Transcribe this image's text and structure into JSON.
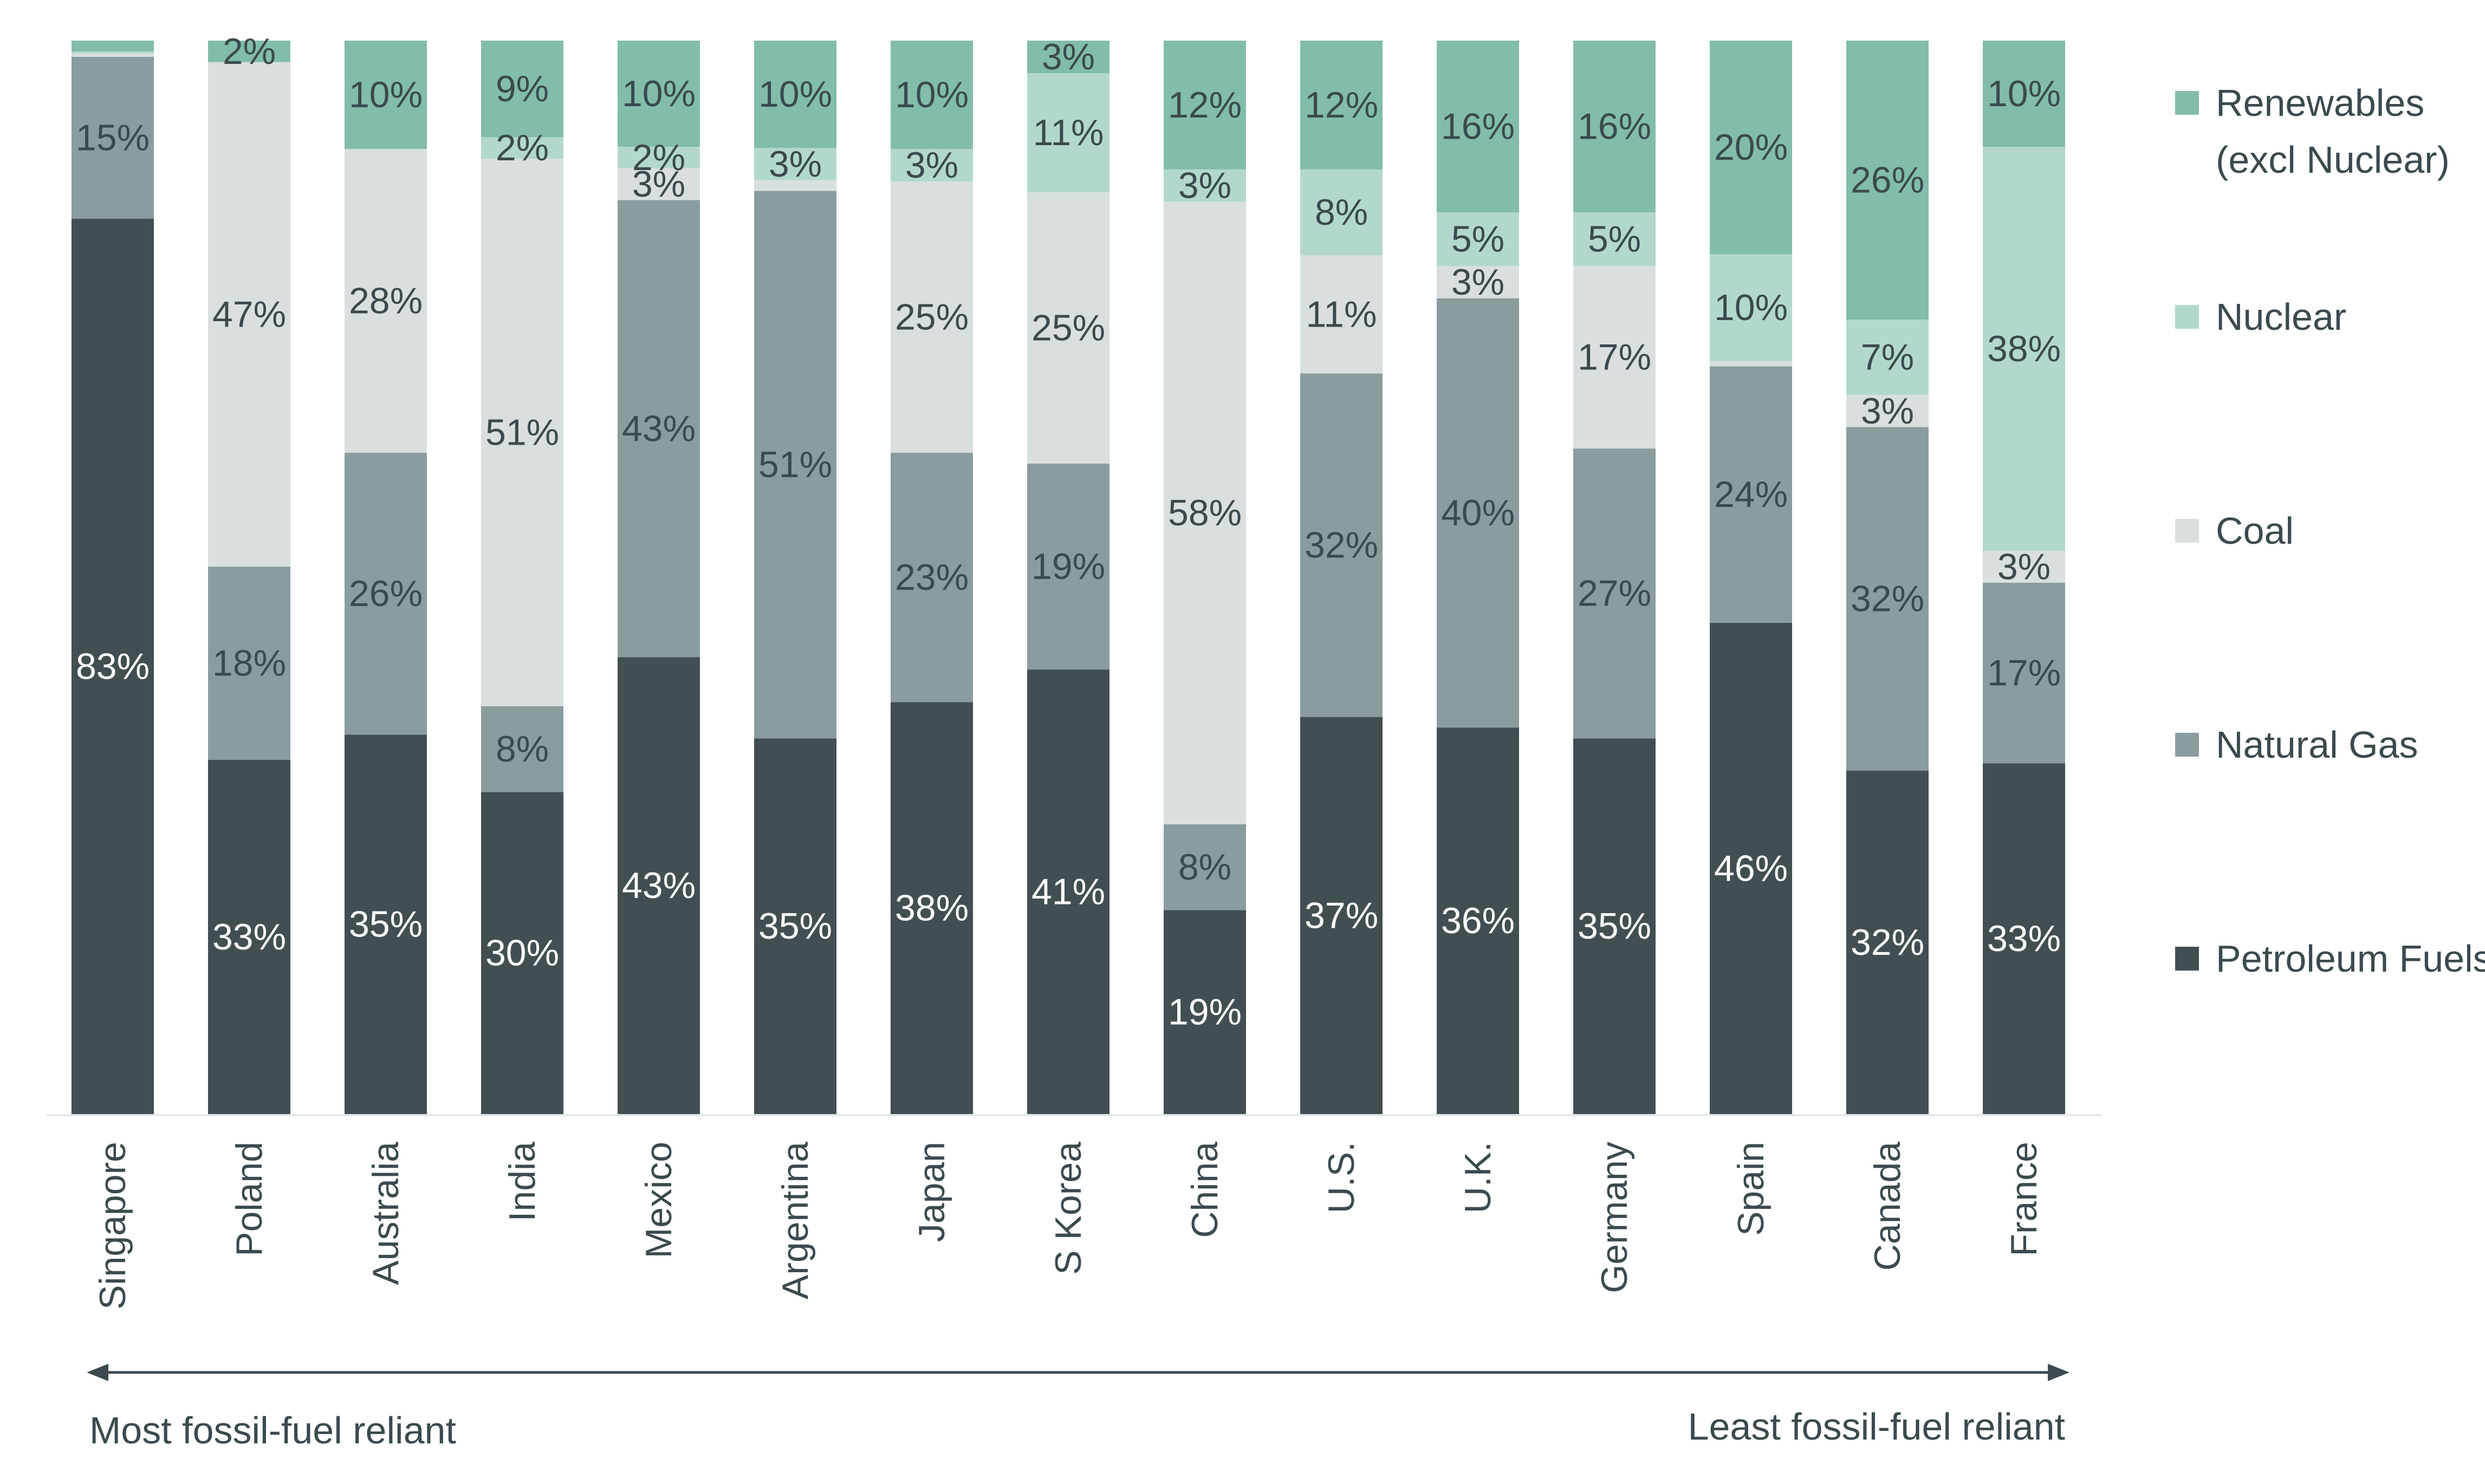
{
  "chart_data": {
    "type": "bar",
    "stacked": true,
    "normalized_percent": true,
    "categories": [
      "Singapore",
      "Poland",
      "Australia",
      "India",
      "Mexico",
      "Argentina",
      "Japan",
      "S Korea",
      "China",
      "U.S.",
      "U.K.",
      "Germany",
      "Spain",
      "Canada",
      "France"
    ],
    "series": [
      {
        "name": "Petroleum Fuels",
        "color": "#414f53",
        "label_color": "#ffffff",
        "values": [
          83,
          33,
          35,
          30,
          43,
          35,
          38,
          41,
          19,
          37,
          36,
          35,
          46,
          32,
          33
        ],
        "labels": [
          "83%",
          "33%",
          "35%",
          "30%",
          "43%",
          "35%",
          "38%",
          "41%",
          "19%",
          "37%",
          "36%",
          "35%",
          "46%",
          "32%",
          "33%"
        ]
      },
      {
        "name": "Natural Gas",
        "color": "#8b9c9e",
        "label_color": "#3b4a4f",
        "values": [
          15,
          18,
          26,
          8,
          43,
          51,
          23,
          19,
          8,
          32,
          40,
          27,
          24,
          32,
          17
        ],
        "labels": [
          "15%",
          "18%",
          "26%",
          "8%",
          "43%",
          "51%",
          "23%",
          "19%",
          "8%",
          "32%",
          "40%",
          "27%",
          "24%",
          "32%",
          "17%"
        ]
      },
      {
        "name": "Coal",
        "color": "#d9dfdf",
        "label_color": "#3b4a4f",
        "values": [
          0.3,
          47,
          28,
          51,
          3,
          1,
          25,
          25,
          58,
          11,
          3,
          17,
          0.5,
          3,
          3
        ],
        "labels": [
          "",
          "47%",
          "28%",
          "51%",
          "3%",
          "",
          "25%",
          "25%",
          "58%",
          "11%",
          "3%",
          "17%",
          "",
          "3%",
          "3%"
        ]
      },
      {
        "name": "Nuclear",
        "color": "#b2d8ce",
        "label_color": "#3b4a4f",
        "values": [
          0.2,
          0,
          0,
          2,
          2,
          3,
          3,
          11,
          3,
          8,
          5,
          5,
          10,
          7,
          38
        ],
        "labels": [
          "",
          "",
          "",
          "2%",
          "2%",
          "3%",
          "3%",
          "11%",
          "3%",
          "8%",
          "5%",
          "5%",
          "10%",
          "7%",
          "38%"
        ]
      },
      {
        "name": "Renewables\n(excl Nuclear)",
        "color": "#82bcab",
        "label_color": "#3b4a4f",
        "values": [
          1,
          2,
          10,
          9,
          10,
          10,
          10,
          3,
          12,
          12,
          16,
          16,
          20,
          26,
          10
        ],
        "labels": [
          "",
          "2%",
          "10%",
          "9%",
          "10%",
          "10%",
          "10%",
          "3%",
          "12%",
          "12%",
          "16%",
          "16%",
          "20%",
          "26%",
          "10%"
        ]
      }
    ],
    "ylim": [
      0,
      100
    ],
    "legend_order": [
      "Renewables\n(excl Nuclear)",
      "Nuclear",
      "Coal",
      "Natural Gas",
      "Petroleum Fuels"
    ],
    "legend_position": "right",
    "grid": false,
    "xlabel": "",
    "ylabel": "",
    "title": ""
  },
  "annotation": {
    "left_text": "Most fossil-fuel reliant",
    "right_text": "Least fossil-fuel reliant"
  },
  "colors": {
    "axis": "#e4e8e8",
    "text": "#3b4a4f"
  }
}
